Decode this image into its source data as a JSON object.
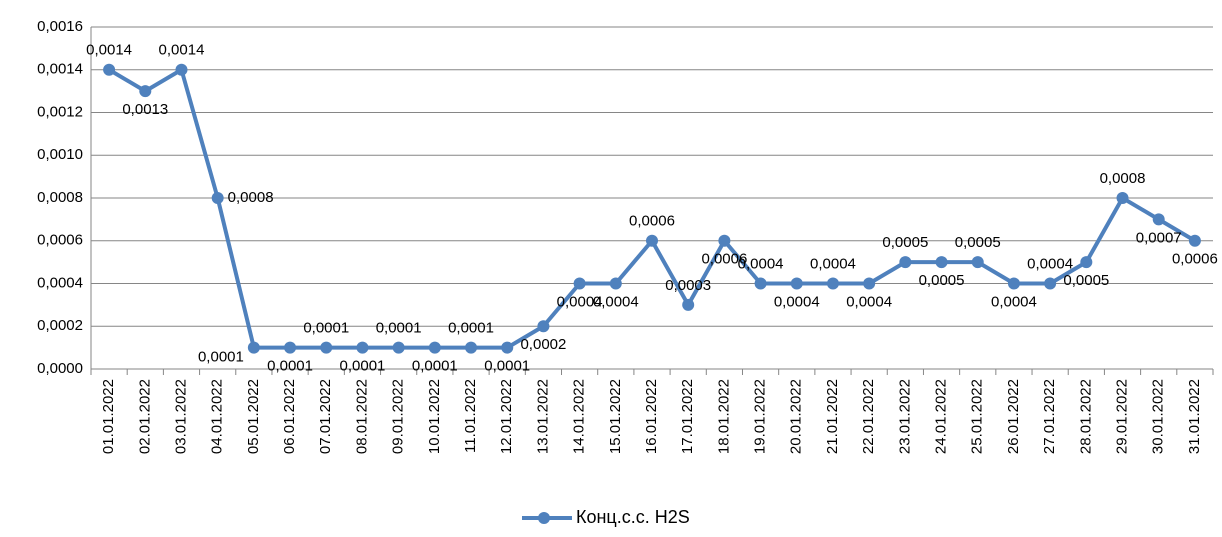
{
  "chart_data": {
    "type": "line",
    "categories": [
      "01.01.2022",
      "02.01.2022",
      "03.01.2022",
      "04.01.2022",
      "05.01.2022",
      "06.01.2022",
      "07.01.2022",
      "08.01.2022",
      "09.01.2022",
      "10.01.2022",
      "11.01.2022",
      "12.01.2022",
      "13.01.2022",
      "14.01.2022",
      "15.01.2022",
      "16.01.2022",
      "17.01.2022",
      "18.01.2022",
      "19.01.2022",
      "20.01.2022",
      "21.01.2022",
      "22.01.2022",
      "23.01.2022",
      "24.01.2022",
      "25.01.2022",
      "26.01.2022",
      "27.01.2022",
      "28.01.2022",
      "29.01.2022",
      "30.01.2022",
      "31.01.2022"
    ],
    "series": [
      {
        "name": "Конц.с.с. H2S",
        "color": "#4f81bd",
        "values": [
          0.0014,
          0.0013,
          0.0014,
          0.0008,
          0.0001,
          0.0001,
          0.0001,
          0.0001,
          0.0001,
          0.0001,
          0.0001,
          0.0001,
          0.0002,
          0.0004,
          0.0004,
          0.0006,
          0.0003,
          0.0006,
          0.0004,
          0.0004,
          0.0004,
          0.0004,
          0.0005,
          0.0005,
          0.0005,
          0.0004,
          0.0004,
          0.0005,
          0.0008,
          0.0007,
          0.0006
        ],
        "value_labels": [
          "0,0014",
          "0,0013",
          "0,0014",
          "0,0008",
          "0,0001",
          "0,0001",
          "0,0001",
          "0,0001",
          "0,0001",
          "0,0001",
          "0,0001",
          "0,0001",
          "0,0002",
          "0,0004",
          "0,0004",
          "0,0006",
          "0,0003",
          "0,0006",
          "0,0004",
          "0,0004",
          "0,0004",
          "0,0004",
          "0,0005",
          "0,0005",
          "0,0005",
          "0,0004",
          "0,0004",
          "0,0005",
          "0,0008",
          "0,0007",
          "0,0006"
        ]
      }
    ],
    "ylim": [
      0,
      0.0016
    ],
    "yticks": [
      {
        "value": 0,
        "label": "0,0000"
      },
      {
        "value": 0.0002,
        "label": "0,0002"
      },
      {
        "value": 0.0004,
        "label": "0,0004"
      },
      {
        "value": 0.0006,
        "label": "0,0006"
      },
      {
        "value": 0.0008,
        "label": "0,0008"
      },
      {
        "value": 0.001,
        "label": "0,0010"
      },
      {
        "value": 0.0012,
        "label": "0,0012"
      },
      {
        "value": 0.0014,
        "label": "0,0014"
      },
      {
        "value": 0.0016,
        "label": "0,0016"
      }
    ],
    "grid": true,
    "legend": "bottom"
  }
}
